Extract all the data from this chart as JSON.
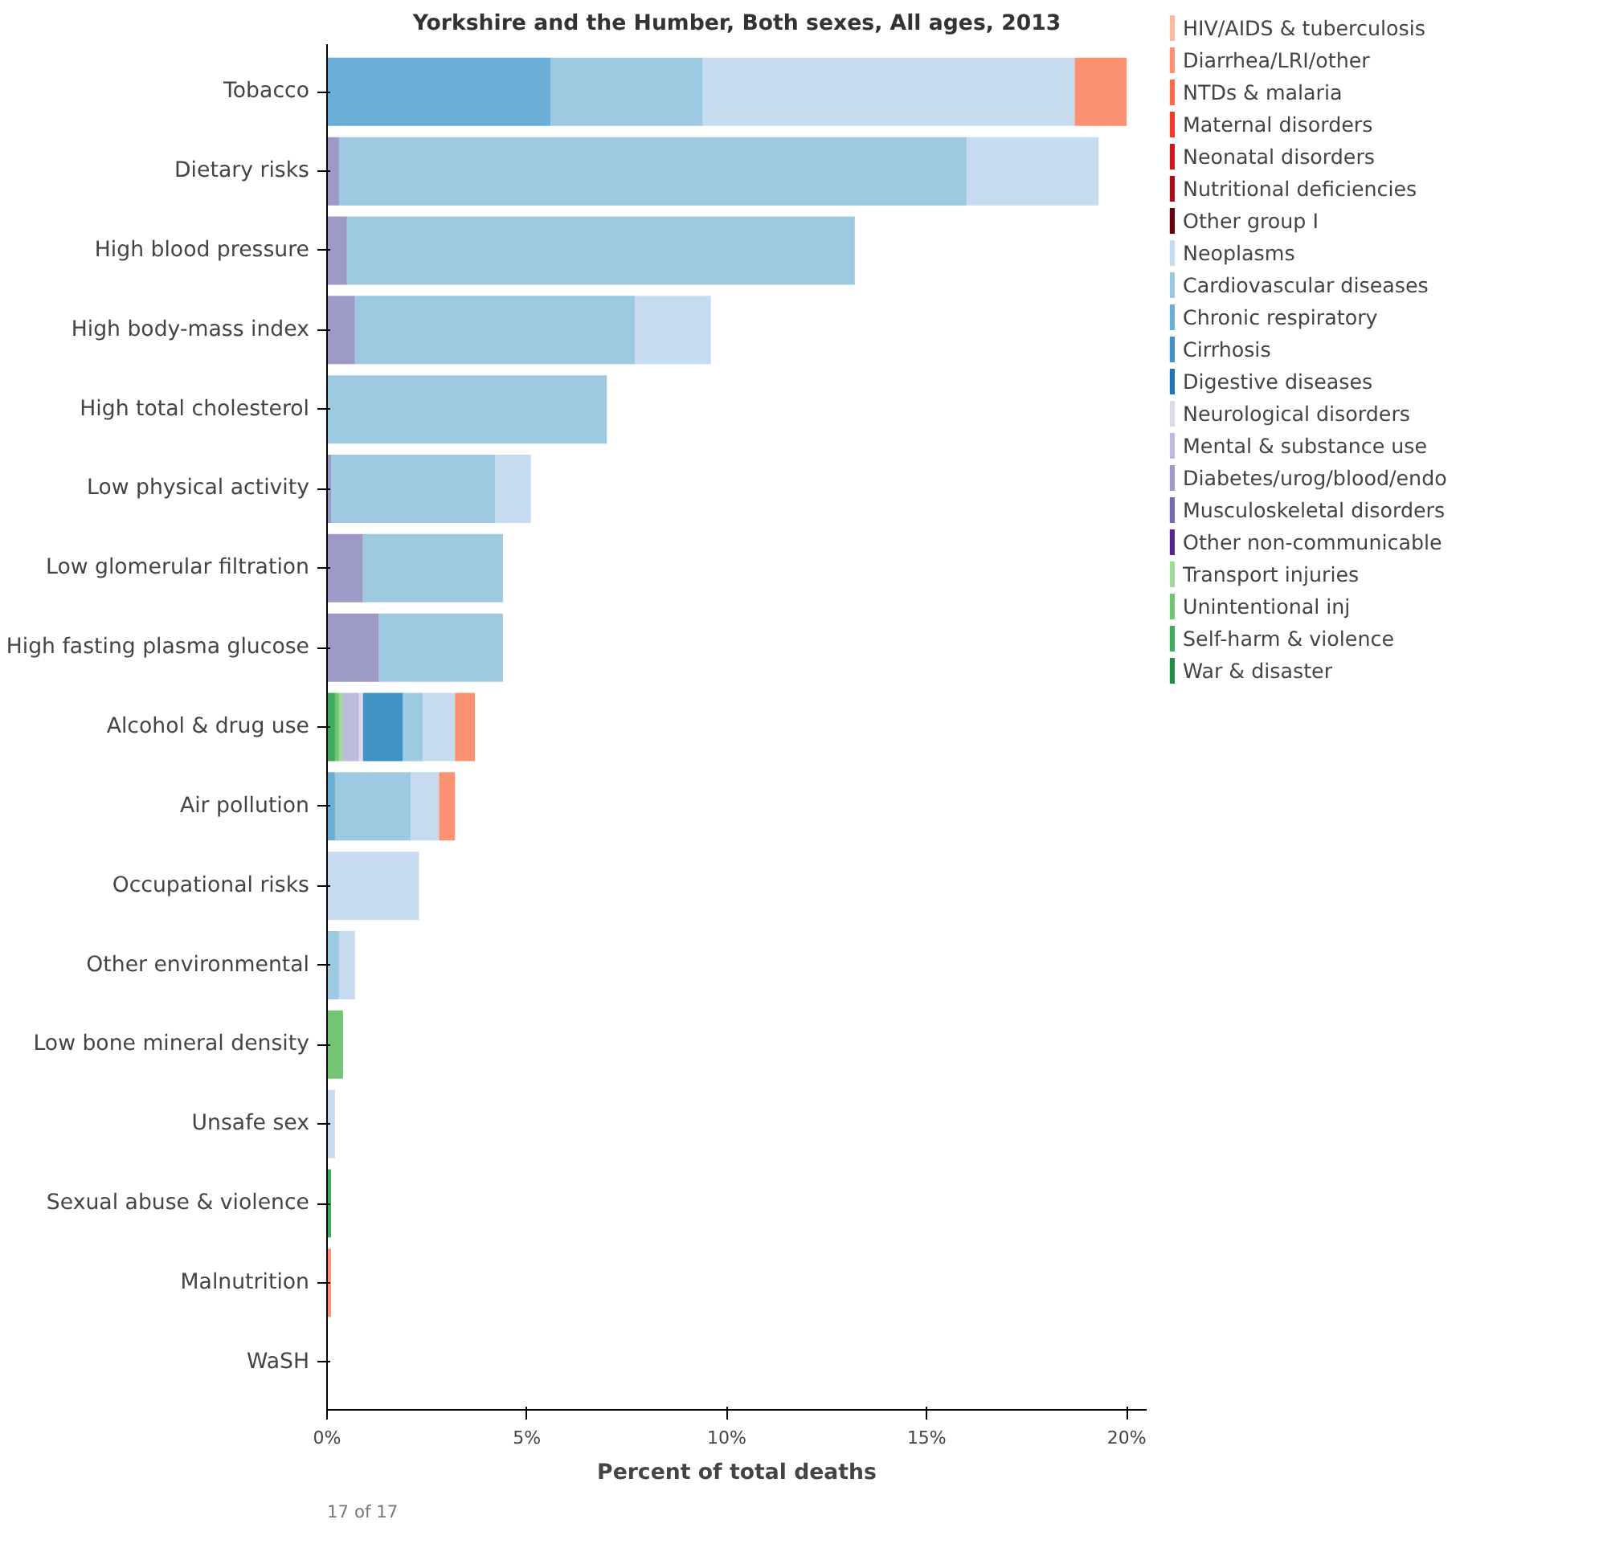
{
  "chart_data": {
    "type": "bar",
    "orientation": "horizontal",
    "stacked": true,
    "title": "Yorkshire and the Humber, Both sexes, All ages, 2013",
    "xlabel": "Percent of total deaths",
    "categories": [
      "Tobacco",
      "Dietary risks",
      "High blood pressure",
      "High body-mass index",
      "High total cholesterol",
      "Low physical activity",
      "Low glomerular filtration",
      "High fasting plasma glucose",
      "Alcohol & drug use",
      "Air pollution",
      "Occupational risks",
      "Other environmental",
      "Low bone mineral density",
      "Unsafe sex",
      "Sexual abuse & violence",
      "Malnutrition",
      "WaSH"
    ],
    "xlim": [
      0,
      20.5
    ],
    "xticks": [
      {
        "value": 0,
        "label": "0%"
      },
      {
        "value": 5,
        "label": "5%"
      },
      {
        "value": 10,
        "label": "10%"
      },
      {
        "value": 15,
        "label": "15%"
      },
      {
        "value": 20,
        "label": "20%"
      }
    ],
    "grid": false,
    "legend": "right",
    "annotations": [
      "17 of 17"
    ],
    "series": [
      {
        "name": "War & disaster",
        "color": "#238b45",
        "values": [
          0,
          0,
          0,
          0,
          0,
          0,
          0,
          0,
          0,
          0,
          0,
          0,
          0,
          0,
          0,
          0,
          0
        ]
      },
      {
        "name": "Self-harm & violence",
        "color": "#41ab5d",
        "values": [
          0,
          0,
          0,
          0,
          0,
          0,
          0,
          0,
          0.2,
          0,
          0,
          0,
          0,
          0,
          0.1,
          0,
          0
        ]
      },
      {
        "name": "Unintentional inj",
        "color": "#74c476",
        "values": [
          0,
          0,
          0,
          0,
          0,
          0,
          0,
          0,
          0.1,
          0,
          0,
          0,
          0.4,
          0,
          0,
          0,
          0
        ]
      },
      {
        "name": "Transport injuries",
        "color": "#a1d99b",
        "values": [
          0,
          0,
          0,
          0,
          0,
          0,
          0,
          0,
          0.1,
          0,
          0,
          0,
          0,
          0,
          0,
          0,
          0
        ]
      },
      {
        "name": "Other non-communicable",
        "color": "#54278f",
        "values": [
          0,
          0,
          0,
          0,
          0,
          0,
          0,
          0,
          0,
          0,
          0,
          0,
          0,
          0,
          0,
          0,
          0
        ]
      },
      {
        "name": "Musculoskeletal disorders",
        "color": "#756bb1",
        "values": [
          0,
          0,
          0,
          0,
          0,
          0,
          0,
          0,
          0,
          0,
          0,
          0,
          0,
          0,
          0,
          0,
          0
        ]
      },
      {
        "name": "Diabetes/urog/blood/endo",
        "color": "#9e9ac8",
        "values": [
          0,
          0.3,
          0.5,
          0.7,
          0,
          0.1,
          0.9,
          1.3,
          0,
          0,
          0,
          0,
          0,
          0,
          0,
          0,
          0
        ]
      },
      {
        "name": "Mental & substance use",
        "color": "#bcbddc",
        "values": [
          0,
          0,
          0,
          0,
          0,
          0,
          0,
          0,
          0.4,
          0,
          0,
          0,
          0,
          0,
          0,
          0,
          0
        ]
      },
      {
        "name": "Neurological disorders",
        "color": "#dadaeb",
        "values": [
          0,
          0,
          0,
          0,
          0,
          0,
          0,
          0,
          0.1,
          0,
          0,
          0,
          0,
          0,
          0,
          0,
          0
        ]
      },
      {
        "name": "Digestive diseases",
        "color": "#2171b5",
        "values": [
          0,
          0,
          0,
          0,
          0,
          0,
          0,
          0,
          0,
          0,
          0,
          0,
          0,
          0,
          0,
          0,
          0
        ]
      },
      {
        "name": "Cirrhosis",
        "color": "#4292c6",
        "values": [
          0,
          0,
          0,
          0,
          0,
          0,
          0,
          0,
          1.0,
          0,
          0,
          0,
          0,
          0,
          0,
          0,
          0
        ]
      },
      {
        "name": "Chronic respiratory",
        "color": "#6baed6",
        "values": [
          5.6,
          0,
          0,
          0,
          0,
          0,
          0,
          0,
          0,
          0.2,
          0,
          0,
          0,
          0,
          0,
          0,
          0
        ]
      },
      {
        "name": "Cardiovascular diseases",
        "color": "#9ecae1",
        "values": [
          3.8,
          15.7,
          12.7,
          7.0,
          7.0,
          4.1,
          3.5,
          3.1,
          0.5,
          1.9,
          0,
          0.3,
          0,
          0,
          0,
          0,
          0
        ]
      },
      {
        "name": "Neoplasms",
        "color": "#c6dbef",
        "values": [
          9.3,
          3.3,
          0,
          1.9,
          0,
          0.9,
          0,
          0,
          0.8,
          0.7,
          2.3,
          0.4,
          0,
          0.2,
          0,
          0,
          0
        ]
      },
      {
        "name": "Other group I",
        "color": "#67000d",
        "values": [
          0,
          0,
          0,
          0,
          0,
          0,
          0,
          0,
          0,
          0,
          0,
          0,
          0,
          0,
          0,
          0,
          0
        ]
      },
      {
        "name": "Nutritional deficiencies",
        "color": "#a50f15",
        "values": [
          0,
          0,
          0,
          0,
          0,
          0,
          0,
          0,
          0,
          0,
          0,
          0,
          0,
          0,
          0,
          0,
          0
        ]
      },
      {
        "name": "Neonatal disorders",
        "color": "#cb181d",
        "values": [
          0,
          0,
          0,
          0,
          0,
          0,
          0,
          0,
          0,
          0,
          0,
          0,
          0,
          0,
          0,
          0,
          0
        ]
      },
      {
        "name": "Maternal disorders",
        "color": "#ef3b2c",
        "values": [
          0,
          0,
          0,
          0,
          0,
          0,
          0,
          0,
          0,
          0,
          0,
          0,
          0,
          0,
          0,
          0,
          0
        ]
      },
      {
        "name": "NTDs & malaria",
        "color": "#fb6a4a",
        "values": [
          0,
          0,
          0,
          0,
          0,
          0,
          0,
          0,
          0,
          0,
          0,
          0,
          0,
          0,
          0,
          0,
          0
        ]
      },
      {
        "name": "Diarrhea/LRI/other",
        "color": "#fc9272",
        "values": [
          1.3,
          0,
          0,
          0,
          0,
          0,
          0,
          0,
          0.5,
          0.4,
          0,
          0,
          0,
          0,
          0,
          0.1,
          null
        ]
      },
      {
        "name": "HIV/AIDS & tuberculosis",
        "color": "#fcbba1",
        "values": [
          0,
          0,
          0,
          0,
          0,
          0,
          0,
          0,
          0,
          0,
          0,
          0,
          0,
          0,
          0,
          0,
          0
        ]
      }
    ]
  }
}
